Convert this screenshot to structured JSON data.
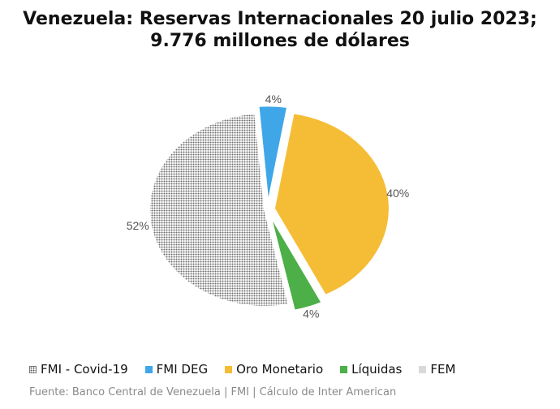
{
  "chart_data": {
    "type": "pie",
    "title_line1": "Venezuela: Reservas Internacionales 20 julio 2023;",
    "title_line2": "9.776 millones de dólares",
    "slices": [
      {
        "name": "FMI - Covid-19",
        "value": 52,
        "label": "52%",
        "color": "#7a7a7a",
        "pattern": "dots"
      },
      {
        "name": "FMI DEG",
        "value": 4,
        "label": "4%",
        "color": "#3fa7e8"
      },
      {
        "name": "Oro Monetario",
        "value": 40,
        "label": "40%",
        "color": "#f5bd35"
      },
      {
        "name": "Líquidas",
        "value": 4,
        "label": "4%",
        "color": "#4caf48"
      },
      {
        "name": "FEM",
        "value": 0,
        "label": "",
        "color": "#d9d9d9"
      }
    ],
    "legend_position": "bottom"
  },
  "source": "Fuente: Banco Central de Venezuela | FMI | Cálculo de Inter American"
}
